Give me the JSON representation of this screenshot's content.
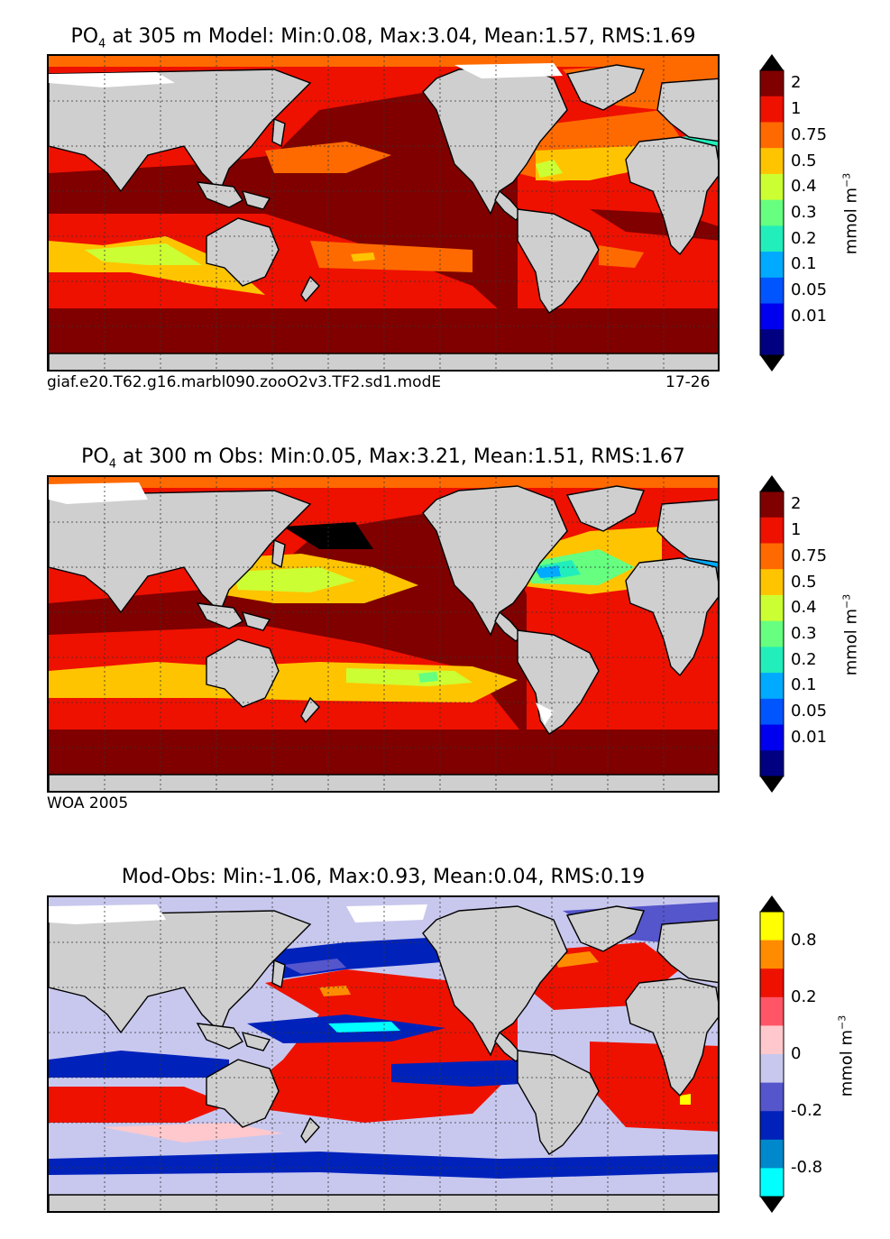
{
  "panels": [
    {
      "id": "model",
      "title_var": "PO",
      "title_sub": "4",
      "title_rest": " at 305 m Model: Min:0.08, Max:3.04, Mean:1.57, RMS:1.69",
      "caption_left": "giaf.e20.T62.g16.marbl090.zooO2v3.TF2.sd1.modE",
      "caption_right": "17-26"
    },
    {
      "id": "obs",
      "title_var": "PO",
      "title_sub": "4",
      "title_rest": " at 300 m Obs: Min:0.05, Max:3.21, Mean:1.51, RMS:1.67",
      "caption_left": "WOA 2005",
      "caption_right": ""
    },
    {
      "id": "diff",
      "title_var": "",
      "title_sub": "",
      "title_rest": "Mod-Obs: Min:-1.06, Max:0.93, Mean:0.04, RMS:0.19",
      "caption_left": "",
      "caption_right": ""
    }
  ],
  "colorbars": {
    "concentration": {
      "unit_main": "mmol m",
      "unit_sup": "−3",
      "labels": [
        "2",
        "1",
        "0.75",
        "0.5",
        "0.4",
        "0.3",
        "0.2",
        "0.1",
        "0.05",
        "0.01"
      ],
      "colors_top_to_bottom": [
        "#800000",
        "#ee1100",
        "#ff6a00",
        "#ffc400",
        "#ccff33",
        "#66ff80",
        "#22eebb",
        "#00aaff",
        "#0055ff",
        "#0000ee",
        "#000080"
      ]
    },
    "difference": {
      "unit_main": "mmol m",
      "unit_sup": "−3",
      "labels": [
        "0.8",
        "0.2",
        "0",
        "-0.2",
        "-0.8"
      ],
      "colors_top_to_bottom": [
        "#ffff00",
        "#ff8c00",
        "#ee1100",
        "#ff5566",
        "#ffc8cc",
        "#c8c8ee",
        "#5555cc",
        "#0022bb",
        "#0088cc",
        "#00ffff"
      ]
    }
  },
  "chart_data": [
    {
      "type": "heatmap",
      "title": "PO4 at 305 m Model: Min:0.08, Max:3.04, Mean:1.57, RMS:1.69",
      "variable": "PO4",
      "depth_m": 305,
      "source": "Model",
      "stats": {
        "min": 0.08,
        "max": 3.04,
        "mean": 1.57,
        "rms": 1.69
      },
      "color_levels": [
        0.01,
        0.05,
        0.1,
        0.2,
        0.3,
        0.4,
        0.5,
        0.75,
        1,
        2
      ],
      "units": "mmol m-3"
    },
    {
      "type": "heatmap",
      "title": "PO4 at 300 m Obs: Min:0.05, Max:3.21, Mean:1.51, RMS:1.67",
      "variable": "PO4",
      "depth_m": 300,
      "source": "WOA 2005",
      "stats": {
        "min": 0.05,
        "max": 3.21,
        "mean": 1.51,
        "rms": 1.67
      },
      "color_levels": [
        0.01,
        0.05,
        0.1,
        0.2,
        0.3,
        0.4,
        0.5,
        0.75,
        1,
        2
      ],
      "units": "mmol m-3"
    },
    {
      "type": "heatmap",
      "title": "Mod-Obs: Min:-1.06, Max:0.93, Mean:0.04, RMS:0.19",
      "variable": "PO4 difference",
      "stats": {
        "min": -1.06,
        "max": 0.93,
        "mean": 0.04,
        "rms": 0.19
      },
      "color_levels": [
        -0.8,
        -0.2,
        0,
        0.2,
        0.8
      ],
      "units": "mmol m-3"
    }
  ]
}
